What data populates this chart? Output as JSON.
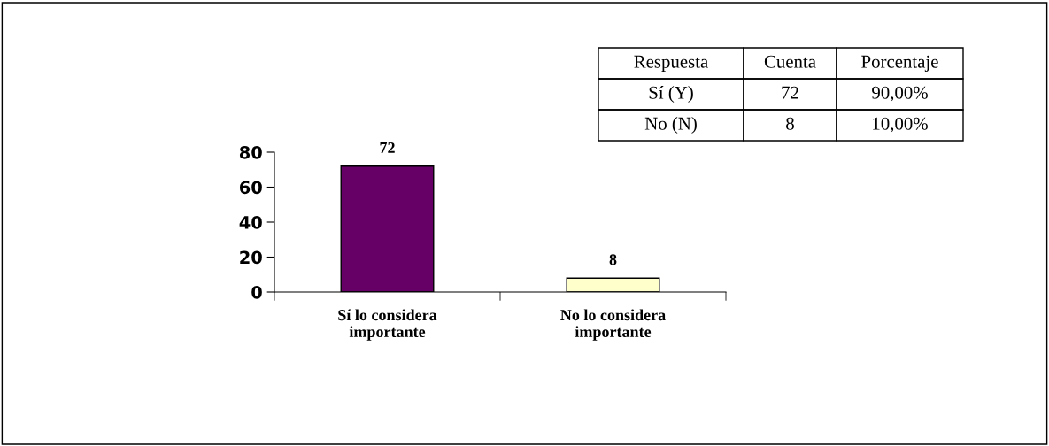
{
  "chart_data": {
    "type": "bar",
    "categories": [
      "Sí lo considera\nimportante",
      "No lo considera\nimportante"
    ],
    "values": [
      72,
      8
    ],
    "colors": [
      "#660066",
      "#ffffcc"
    ],
    "ylim": [
      0,
      80
    ],
    "yticks": [
      0,
      20,
      40,
      60,
      80
    ],
    "grid": false,
    "data_labels": true,
    "annotations": [
      "Respuesta",
      "Cuenta",
      "Porcentaje",
      "Sí (Y)",
      "72",
      "90,00%",
      "No (N)",
      "8",
      "10,00%"
    ]
  }
}
